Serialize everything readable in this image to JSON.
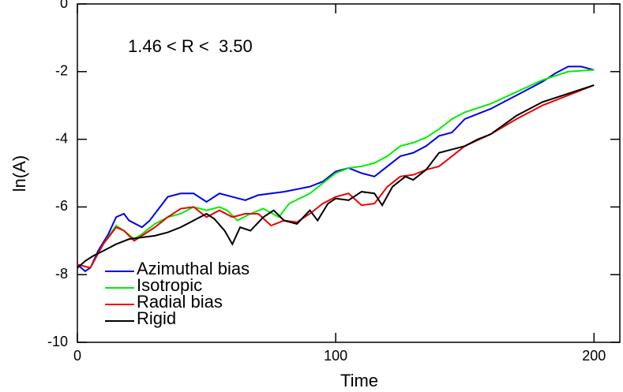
{
  "chart_data": {
    "type": "line",
    "x_label": "Time",
    "y_label": "ln(A)",
    "annotation": "1.46 < R <  3.50",
    "xlim": [
      0,
      210
    ],
    "ylim": [
      -10,
      0
    ],
    "xticks": [
      0,
      100,
      200
    ],
    "yticks": [
      -10,
      -8,
      -6,
      -4,
      -2,
      0
    ],
    "legend": "lower left",
    "series": [
      {
        "name": "Azimuthal bias",
        "color": "#0000ee",
        "x": [
          0,
          3,
          5,
          8,
          12,
          15,
          18,
          20,
          25,
          28,
          32,
          35,
          40,
          45,
          50,
          55,
          60,
          65,
          70,
          80,
          90,
          95,
          100,
          105,
          110,
          115,
          120,
          125,
          130,
          135,
          140,
          145,
          150,
          160,
          170,
          180,
          185,
          190,
          195,
          200
        ],
        "values": [
          -7.7,
          -7.9,
          -7.8,
          -7.3,
          -6.8,
          -6.3,
          -6.2,
          -6.4,
          -6.6,
          -6.4,
          -6.0,
          -5.7,
          -5.6,
          -5.6,
          -5.85,
          -5.6,
          -5.7,
          -5.8,
          -5.65,
          -5.55,
          -5.4,
          -5.25,
          -4.95,
          -4.85,
          -5.0,
          -5.1,
          -4.8,
          -4.5,
          -4.4,
          -4.2,
          -3.9,
          -3.8,
          -3.4,
          -3.1,
          -2.7,
          -2.3,
          -2.05,
          -1.85,
          -1.85,
          -1.95
        ]
      },
      {
        "name": "Isotropic",
        "color": "#00ee00",
        "x": [
          0,
          5,
          10,
          15,
          18,
          22,
          25,
          30,
          35,
          40,
          45,
          50,
          55,
          58,
          62,
          67,
          72,
          78,
          82,
          90,
          95,
          100,
          105,
          110,
          115,
          120,
          125,
          130,
          135,
          140,
          145,
          150,
          160,
          170,
          180,
          190,
          200
        ],
        "values": [
          -7.7,
          -7.8,
          -7.1,
          -6.55,
          -6.7,
          -6.95,
          -6.8,
          -6.5,
          -6.3,
          -6.2,
          -6.0,
          -6.1,
          -6.0,
          -6.1,
          -6.4,
          -6.2,
          -6.05,
          -6.3,
          -5.9,
          -5.6,
          -5.3,
          -5.0,
          -4.85,
          -4.8,
          -4.7,
          -4.5,
          -4.2,
          -4.1,
          -3.95,
          -3.7,
          -3.4,
          -3.2,
          -2.95,
          -2.6,
          -2.25,
          -2.0,
          -1.95
        ]
      },
      {
        "name": "Radial bias",
        "color": "#ee0000",
        "x": [
          0,
          5,
          10,
          15,
          18,
          22,
          25,
          30,
          35,
          40,
          45,
          50,
          55,
          60,
          65,
          70,
          75,
          80,
          85,
          90,
          95,
          100,
          105,
          110,
          115,
          120,
          125,
          130,
          135,
          140,
          145,
          150,
          160,
          170,
          180,
          190,
          200
        ],
        "values": [
          -7.7,
          -7.8,
          -7.1,
          -6.6,
          -6.7,
          -7.0,
          -6.85,
          -6.6,
          -6.3,
          -6.05,
          -6.0,
          -6.3,
          -6.1,
          -6.3,
          -6.2,
          -6.2,
          -6.55,
          -6.4,
          -6.45,
          -6.2,
          -5.9,
          -5.7,
          -5.6,
          -5.95,
          -5.9,
          -5.4,
          -5.1,
          -5.05,
          -4.9,
          -4.8,
          -4.5,
          -4.2,
          -3.85,
          -3.4,
          -3.0,
          -2.7,
          -2.4
        ]
      },
      {
        "name": "Rigid",
        "color": "#000000",
        "x": [
          0,
          3,
          6,
          10,
          15,
          20,
          25,
          30,
          35,
          40,
          45,
          50,
          53,
          57,
          60,
          63,
          67,
          72,
          76,
          80,
          85,
          90,
          93,
          97,
          100,
          105,
          110,
          115,
          118,
          122,
          127,
          130,
          135,
          140,
          145,
          150,
          155,
          160,
          170,
          180,
          190,
          200
        ],
        "values": [
          -7.8,
          -7.6,
          -7.45,
          -7.3,
          -7.1,
          -6.95,
          -6.9,
          -6.85,
          -6.75,
          -6.6,
          -6.4,
          -6.2,
          -6.35,
          -6.7,
          -7.1,
          -6.6,
          -6.7,
          -6.3,
          -6.1,
          -6.4,
          -6.5,
          -6.1,
          -6.4,
          -5.9,
          -5.75,
          -5.8,
          -5.55,
          -5.6,
          -5.95,
          -5.4,
          -5.1,
          -5.2,
          -4.9,
          -4.4,
          -4.3,
          -4.2,
          -4.0,
          -3.85,
          -3.3,
          -2.9,
          -2.65,
          -2.4
        ]
      }
    ]
  }
}
